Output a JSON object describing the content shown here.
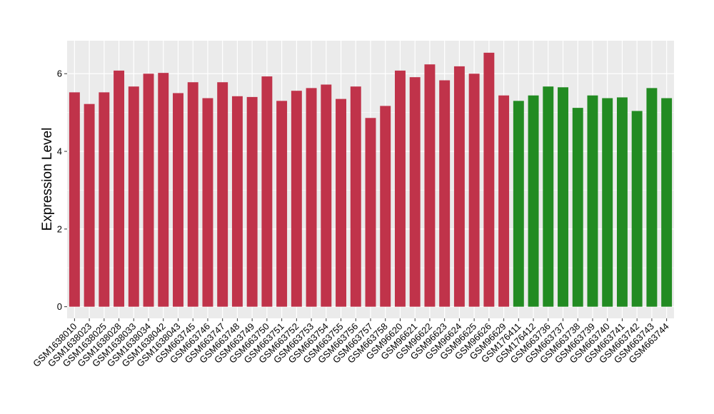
{
  "chart_data": {
    "type": "bar",
    "title": "",
    "xlabel": "",
    "ylabel": "Expression Level",
    "ylim": [
      -0.3,
      6.85
    ],
    "yticks": [
      0,
      2,
      4,
      6
    ],
    "grid": true,
    "legend": "none",
    "categories": [
      "GSM1638010",
      "GSM1638023",
      "GSM1638025",
      "GSM1638028",
      "GSM1638033",
      "GSM1638034",
      "GSM1638042",
      "GSM1638043",
      "GSM663745",
      "GSM663746",
      "GSM663747",
      "GSM663748",
      "GSM663749",
      "GSM663750",
      "GSM663751",
      "GSM663752",
      "GSM663753",
      "GSM663754",
      "GSM663755",
      "GSM663756",
      "GSM663757",
      "GSM663758",
      "GSM96620",
      "GSM96621",
      "GSM96622",
      "GSM96623",
      "GSM96624",
      "GSM96625",
      "GSM96626",
      "GSM96629",
      "GSM176411",
      "GSM176412",
      "GSM663736",
      "GSM663737",
      "GSM663738",
      "GSM663739",
      "GSM663740",
      "GSM663741",
      "GSM663742",
      "GSM663743",
      "GSM663744"
    ],
    "values": [
      5.52,
      5.22,
      5.52,
      6.08,
      5.67,
      6.0,
      6.02,
      5.5,
      5.78,
      5.37,
      5.78,
      5.42,
      5.4,
      5.93,
      5.3,
      5.56,
      5.63,
      5.72,
      5.35,
      5.67,
      4.86,
      5.17,
      6.08,
      5.91,
      6.24,
      5.83,
      6.19,
      6.0,
      6.54,
      5.44,
      5.3,
      5.44,
      5.67,
      5.65,
      5.12,
      5.44,
      5.37,
      5.39,
      5.04,
      5.63,
      5.37
    ],
    "groups": [
      "red",
      "red",
      "red",
      "red",
      "red",
      "red",
      "red",
      "red",
      "red",
      "red",
      "red",
      "red",
      "red",
      "red",
      "red",
      "red",
      "red",
      "red",
      "red",
      "red",
      "red",
      "red",
      "red",
      "red",
      "red",
      "red",
      "red",
      "red",
      "red",
      "red",
      "green",
      "green",
      "green",
      "green",
      "green",
      "green",
      "green",
      "green",
      "green",
      "green",
      "green"
    ]
  },
  "colors": {
    "red": "#c0334a",
    "green": "#228b22",
    "panel": "#ebebeb",
    "grid_major": "#ffffff",
    "grid_minor": "#f5f5f5",
    "tick_mark": "#333333"
  }
}
